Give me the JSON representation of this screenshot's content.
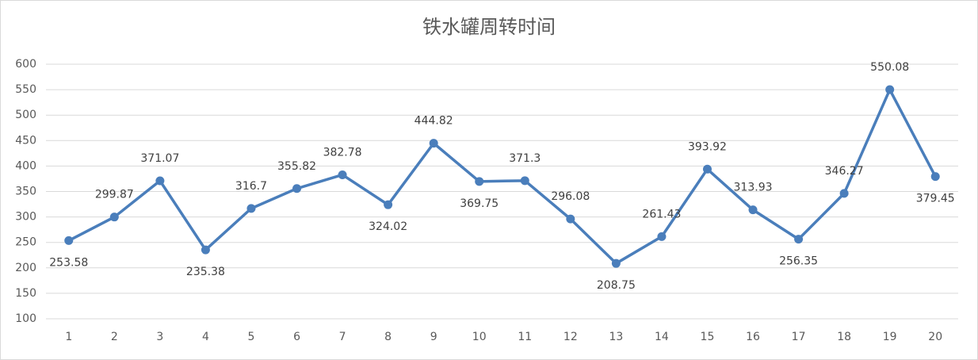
{
  "chart_data": {
    "type": "line",
    "title": "铁水罐周转时间",
    "categories": [
      "1",
      "2",
      "3",
      "4",
      "5",
      "6",
      "7",
      "8",
      "9",
      "10",
      "11",
      "12",
      "13",
      "14",
      "15",
      "16",
      "17",
      "18",
      "19",
      "20"
    ],
    "series": [
      {
        "name": "铁水罐周转时间",
        "color": "#4a7ebb",
        "values": [
          253.58,
          299.87,
          371.07,
          235.38,
          316.7,
          355.82,
          382.78,
          324.02,
          444.82,
          369.75,
          371.3,
          296.08,
          208.75,
          261.43,
          393.92,
          313.93,
          256.35,
          346.27,
          550.08,
          379.45
        ]
      }
    ],
    "ylim": [
      100,
      600
    ],
    "yticks": [
      100,
      150,
      200,
      250,
      300,
      350,
      400,
      450,
      500,
      550,
      600
    ],
    "grid": true
  }
}
